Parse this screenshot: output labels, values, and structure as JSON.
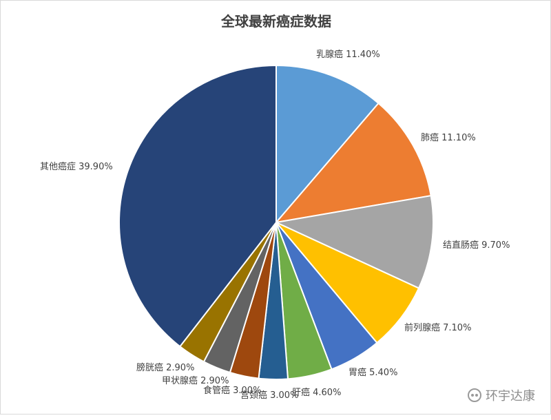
{
  "watermark": {
    "text": "环宇达康",
    "icon": "wechat-icon"
  },
  "chart_data": {
    "type": "pie",
    "title": "全球最新癌症数据",
    "slices": [
      {
        "label": "乳腺癌 11.40%",
        "value": 11.4,
        "color": "#5b9bd5"
      },
      {
        "label": "肺癌 11.10%",
        "value": 11.1,
        "color": "#ed7d31"
      },
      {
        "label": "结直肠癌 9.70%",
        "value": 9.7,
        "color": "#a5a5a5"
      },
      {
        "label": "前列腺癌 7.10%",
        "value": 7.1,
        "color": "#ffc000"
      },
      {
        "label": "胃癌 5.40%",
        "value": 5.4,
        "color": "#4472c4"
      },
      {
        "label": "肝癌 4.60%",
        "value": 4.6,
        "color": "#70ad47"
      },
      {
        "label": "宫颈癌 3.00%",
        "value": 3.0,
        "color": "#255e91"
      },
      {
        "label": "食管癌 3.00%",
        "value": 3.0,
        "color": "#9e480e"
      },
      {
        "label": "甲状腺癌 2.90%",
        "value": 2.9,
        "color": "#636363"
      },
      {
        "label": "膀胱癌 2.90%",
        "value": 2.9,
        "color": "#997300"
      },
      {
        "label": "其他癌症 39.90%",
        "value": 39.9,
        "color": "#264478"
      }
    ]
  }
}
